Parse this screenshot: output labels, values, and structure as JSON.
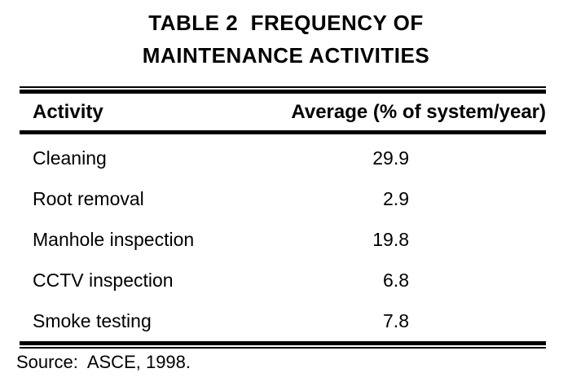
{
  "page": {
    "title_line1": "TABLE 2  FREQUENCY OF",
    "title_line2": "MAINTENANCE ACTIVITIES"
  },
  "table": {
    "header": {
      "activity": "Activity",
      "average": "Average (% of system/year)"
    },
    "rows": [
      {
        "activity": "Cleaning",
        "value": "29.9"
      },
      {
        "activity": "Root removal",
        "value": "2.9"
      },
      {
        "activity": "Manhole inspection",
        "value": "19.8"
      },
      {
        "activity": "CCTV inspection",
        "value": "6.8"
      },
      {
        "activity": "Smoke testing",
        "value": "7.8"
      }
    ],
    "source": "Source:  ASCE, 1998."
  },
  "chart_data": {
    "type": "table",
    "title": "TABLE 2  FREQUENCY OF MAINTENANCE ACTIVITIES",
    "columns": [
      "Activity",
      "Average (% of system/year)"
    ],
    "rows": [
      [
        "Cleaning",
        29.9
      ],
      [
        "Root removal",
        2.9
      ],
      [
        "Manhole inspection",
        19.8
      ],
      [
        "CCTV inspection",
        6.8
      ],
      [
        "Smoke testing",
        7.8
      ]
    ],
    "source": "Source:  ASCE, 1998."
  },
  "colors": {
    "text": "#000000",
    "background": "#ffffff"
  }
}
